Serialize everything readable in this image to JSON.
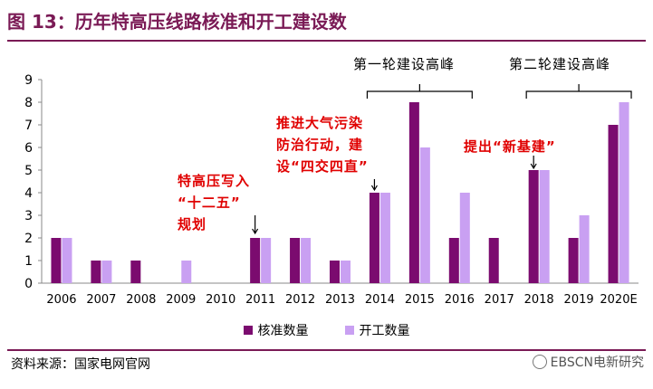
{
  "title": "图 13：历年特高压线路核准和开工建设数",
  "source": "资料来源：国家电网官网",
  "watermark": "EBSCN电新研究",
  "annotations": {
    "a1_line1": "特高压写入",
    "a1_line2": "“十二五”",
    "a1_line3": "规划",
    "a2_line1": "推进大气污染",
    "a2_line2": "防治行动，建",
    "a2_line3": "设“四交四直”",
    "a3": "提出“新基建”"
  },
  "peaks": {
    "first": "第一轮建设高峰",
    "second": "第二轮建设高峰"
  },
  "colors": {
    "approved": "#7b0b6f",
    "started": "#c9a0f2",
    "title": "#7a1a55",
    "annotation": "#e00000"
  },
  "legend": {
    "approved": "核准数量",
    "started": "开工数量"
  },
  "chart_data": {
    "type": "bar",
    "categories": [
      "2006",
      "2007",
      "2008",
      "2009",
      "2010",
      "2011",
      "2012",
      "2013",
      "2014",
      "2015",
      "2016",
      "2017",
      "2018",
      "2019",
      "2020E"
    ],
    "series": [
      {
        "name": "核准数量",
        "values": [
          2,
          1,
          1,
          0,
          0,
          2,
          2,
          1,
          4,
          8,
          2,
          2,
          5,
          2,
          7
        ]
      },
      {
        "name": "开工数量",
        "values": [
          2,
          1,
          0,
          1,
          0,
          2,
          2,
          1,
          4,
          6,
          4,
          0,
          5,
          3,
          8
        ]
      }
    ],
    "ylim": [
      0,
      9
    ],
    "yticks": [
      0,
      1,
      2,
      3,
      4,
      5,
      6,
      7,
      8,
      9
    ],
    "legend_position": "bottom",
    "grid": false
  }
}
